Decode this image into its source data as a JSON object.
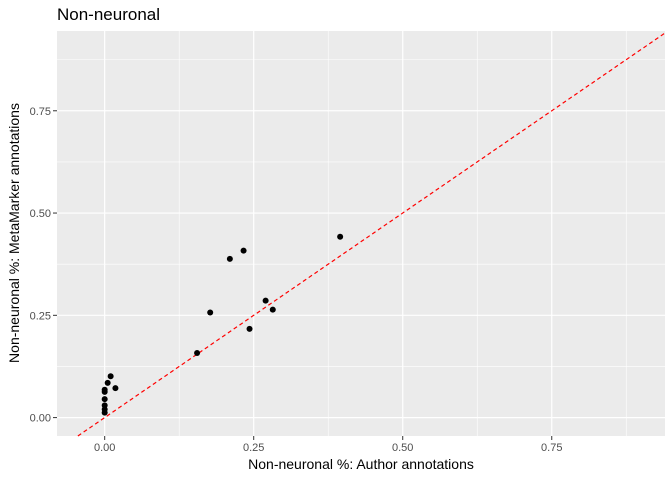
{
  "chart_data": {
    "type": "scatter",
    "title": "Non-neuronal",
    "xlabel": "Non-neuronal %: Author annotations",
    "ylabel": "Non-neuronal %: MetaMarker annotations",
    "xlim": [
      -0.08,
      0.94
    ],
    "ylim": [
      -0.045,
      0.945
    ],
    "x_ticks": [
      0.0,
      0.25,
      0.5,
      0.75
    ],
    "y_ticks": [
      0.0,
      0.25,
      0.5,
      0.75
    ],
    "x_tick_labels": [
      "0.00",
      "0.25",
      "0.50",
      "0.75"
    ],
    "y_tick_labels": [
      "0.00",
      "0.25",
      "0.50",
      "0.75"
    ],
    "grid": true,
    "reference_line": {
      "type": "identity",
      "slope": 1,
      "intercept": 0,
      "style": "dashed",
      "color": "#ff0000"
    },
    "point_color": "#000000",
    "panel_color": "#ebebeb",
    "points": [
      {
        "x": 0.0,
        "y": 0.012
      },
      {
        "x": 0.0,
        "y": 0.02
      },
      {
        "x": 0.0,
        "y": 0.03
      },
      {
        "x": 0.0,
        "y": 0.045
      },
      {
        "x": 0.0,
        "y": 0.063
      },
      {
        "x": 0.0,
        "y": 0.068
      },
      {
        "x": 0.005,
        "y": 0.085
      },
      {
        "x": 0.01,
        "y": 0.101
      },
      {
        "x": 0.018,
        "y": 0.072
      },
      {
        "x": 0.155,
        "y": 0.158
      },
      {
        "x": 0.177,
        "y": 0.257
      },
      {
        "x": 0.21,
        "y": 0.388
      },
      {
        "x": 0.233,
        "y": 0.408
      },
      {
        "x": 0.243,
        "y": 0.217
      },
      {
        "x": 0.27,
        "y": 0.286
      },
      {
        "x": 0.282,
        "y": 0.264
      },
      {
        "x": 0.395,
        "y": 0.442
      }
    ]
  }
}
